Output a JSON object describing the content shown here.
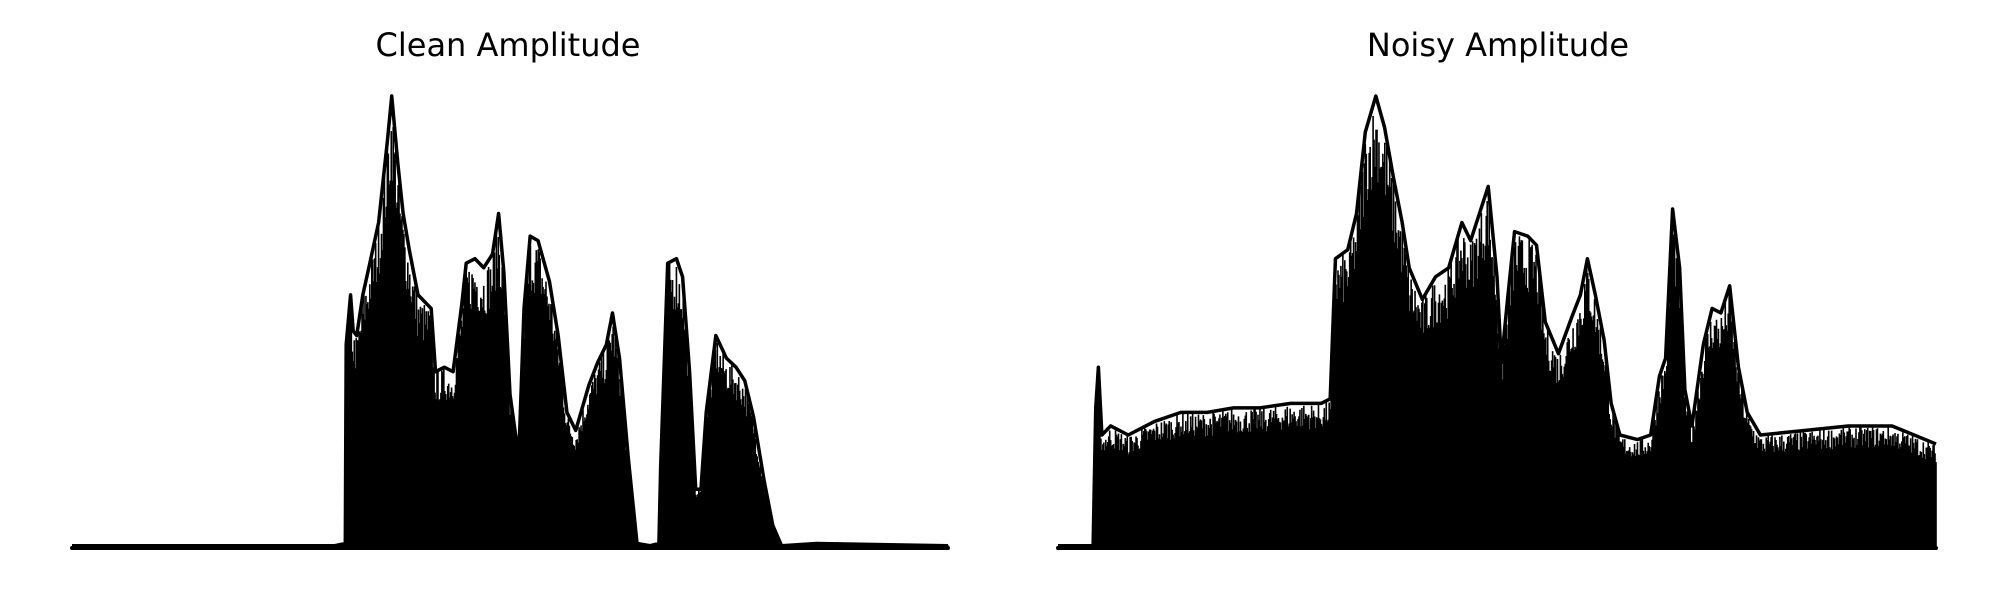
{
  "chart_data": [
    {
      "type": "area",
      "title": "Clean Amplitude",
      "xlabel": "",
      "ylabel": "",
      "axes_visible": false,
      "grid": false,
      "color": "#000000",
      "x_range": [
        0,
        1000
      ],
      "y_range": [
        0,
        1.0
      ],
      "envelope": [
        [
          0,
          0.005
        ],
        [
          300,
          0.005
        ],
        [
          312,
          0.01
        ],
        [
          313,
          0.45
        ],
        [
          318,
          0.56
        ],
        [
          321,
          0.48
        ],
        [
          325,
          0.47
        ],
        [
          332,
          0.56
        ],
        [
          340,
          0.63
        ],
        [
          350,
          0.72
        ],
        [
          360,
          0.9
        ],
        [
          365,
          1.0
        ],
        [
          372,
          0.85
        ],
        [
          378,
          0.74
        ],
        [
          385,
          0.66
        ],
        [
          395,
          0.56
        ],
        [
          410,
          0.53
        ],
        [
          415,
          0.39
        ],
        [
          425,
          0.4
        ],
        [
          435,
          0.39
        ],
        [
          445,
          0.54
        ],
        [
          450,
          0.63
        ],
        [
          460,
          0.64
        ],
        [
          470,
          0.62
        ],
        [
          480,
          0.65
        ],
        [
          487,
          0.74
        ],
        [
          493,
          0.61
        ],
        [
          500,
          0.34
        ],
        [
          510,
          0.2
        ],
        [
          516,
          0.53
        ],
        [
          523,
          0.69
        ],
        [
          532,
          0.68
        ],
        [
          545,
          0.59
        ],
        [
          555,
          0.47
        ],
        [
          565,
          0.3
        ],
        [
          575,
          0.26
        ],
        [
          590,
          0.36
        ],
        [
          600,
          0.41
        ],
        [
          610,
          0.45
        ],
        [
          617,
          0.52
        ],
        [
          625,
          0.42
        ],
        [
          635,
          0.2
        ],
        [
          645,
          0.01
        ],
        [
          660,
          0.005
        ],
        [
          670,
          0.01
        ],
        [
          672,
          0.18
        ],
        [
          680,
          0.63
        ],
        [
          690,
          0.64
        ],
        [
          697,
          0.6
        ],
        [
          705,
          0.39
        ],
        [
          712,
          0.13
        ],
        [
          718,
          0.13
        ],
        [
          724,
          0.3
        ],
        [
          735,
          0.47
        ],
        [
          747,
          0.42
        ],
        [
          758,
          0.4
        ],
        [
          768,
          0.37
        ],
        [
          778,
          0.29
        ],
        [
          790,
          0.15
        ],
        [
          800,
          0.05
        ],
        [
          810,
          0.005
        ],
        [
          850,
          0.01
        ],
        [
          1000,
          0.005
        ]
      ]
    },
    {
      "type": "area",
      "title": "Noisy Amplitude",
      "xlabel": "",
      "ylabel": "",
      "axes_visible": false,
      "grid": false,
      "color": "#000000",
      "x_range": [
        0,
        1000
      ],
      "y_range": [
        0,
        1.0
      ],
      "envelope": [
        [
          0,
          0.005
        ],
        [
          40,
          0.005
        ],
        [
          43,
          0.31
        ],
        [
          46,
          0.4
        ],
        [
          50,
          0.25
        ],
        [
          60,
          0.27
        ],
        [
          80,
          0.25
        ],
        [
          110,
          0.28
        ],
        [
          140,
          0.3
        ],
        [
          170,
          0.3
        ],
        [
          200,
          0.31
        ],
        [
          230,
          0.31
        ],
        [
          265,
          0.32
        ],
        [
          300,
          0.32
        ],
        [
          310,
          0.33
        ],
        [
          316,
          0.64
        ],
        [
          330,
          0.66
        ],
        [
          340,
          0.74
        ],
        [
          350,
          0.92
        ],
        [
          362,
          1.0
        ],
        [
          372,
          0.93
        ],
        [
          382,
          0.82
        ],
        [
          392,
          0.72
        ],
        [
          400,
          0.62
        ],
        [
          415,
          0.55
        ],
        [
          430,
          0.6
        ],
        [
          445,
          0.62
        ],
        [
          460,
          0.72
        ],
        [
          470,
          0.68
        ],
        [
          480,
          0.74
        ],
        [
          490,
          0.8
        ],
        [
          500,
          0.6
        ],
        [
          505,
          0.41
        ],
        [
          512,
          0.55
        ],
        [
          520,
          0.7
        ],
        [
          535,
          0.69
        ],
        [
          545,
          0.67
        ],
        [
          555,
          0.5
        ],
        [
          570,
          0.43
        ],
        [
          585,
          0.51
        ],
        [
          595,
          0.56
        ],
        [
          603,
          0.64
        ],
        [
          612,
          0.56
        ],
        [
          622,
          0.46
        ],
        [
          630,
          0.32
        ],
        [
          640,
          0.25
        ],
        [
          660,
          0.24
        ],
        [
          675,
          0.25
        ],
        [
          685,
          0.38
        ],
        [
          692,
          0.42
        ],
        [
          700,
          0.75
        ],
        [
          708,
          0.62
        ],
        [
          714,
          0.35
        ],
        [
          722,
          0.27
        ],
        [
          735,
          0.45
        ],
        [
          745,
          0.53
        ],
        [
          755,
          0.52
        ],
        [
          765,
          0.58
        ],
        [
          775,
          0.4
        ],
        [
          785,
          0.3
        ],
        [
          800,
          0.25
        ],
        [
          850,
          0.26
        ],
        [
          900,
          0.27
        ],
        [
          950,
          0.27
        ],
        [
          1000,
          0.23
        ]
      ]
    }
  ]
}
